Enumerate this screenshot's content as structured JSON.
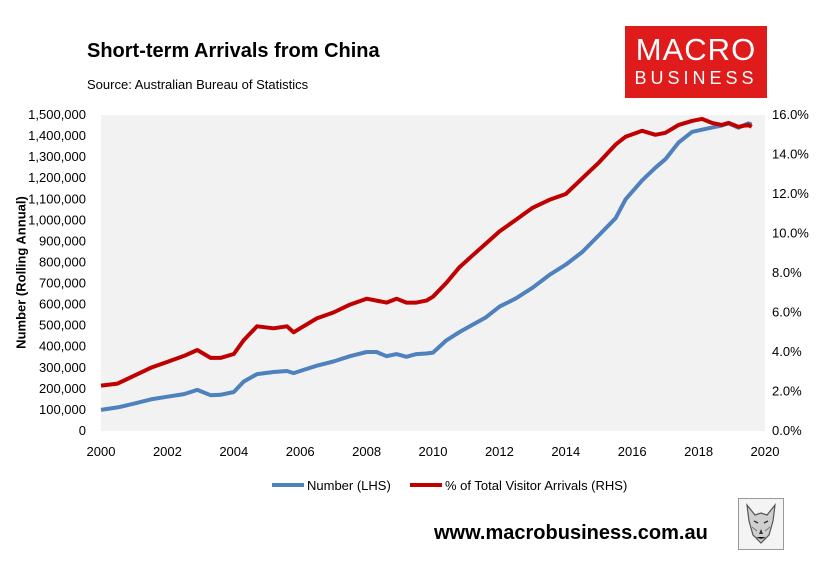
{
  "header": {
    "title": "Short-term Arrivals from China",
    "source": "Source: Australian Bureau of Statistics"
  },
  "logo": {
    "line1": "MACRO",
    "line2": "BUSINESS",
    "color": "#e01b1b"
  },
  "footer": {
    "url": "www.macrobusiness.com.au",
    "mascot_icon": "wolf-icon"
  },
  "chart_data": {
    "type": "line",
    "title": "Short-term Arrivals from China",
    "ylabel": "Number (Rolling Annual)",
    "y_ticks": [
      "0",
      "100,000",
      "200,000",
      "300,000",
      "400,000",
      "500,000",
      "600,000",
      "700,000",
      "800,000",
      "900,000",
      "1,000,000",
      "1,100,000",
      "1,200,000",
      "1,300,000",
      "1,400,000",
      "1,500,000"
    ],
    "y2_ticks": [
      "0.0%",
      "2.0%",
      "4.0%",
      "6.0%",
      "8.0%",
      "10.0%",
      "12.0%",
      "14.0%",
      "16.0%"
    ],
    "x_ticks": [
      "2000",
      "2002",
      "2004",
      "2006",
      "2008",
      "2010",
      "2012",
      "2014",
      "2016",
      "2018",
      "2020"
    ],
    "xlim": [
      2000,
      2020
    ],
    "ylim": [
      0,
      1500000
    ],
    "y2lim": [
      0,
      16
    ],
    "grid": false,
    "plot_background": "#f2f2f2",
    "legend_position": "bottom",
    "series": [
      {
        "name": "Number (LHS)",
        "axis": "left",
        "color": "#4f81bd",
        "x": [
          2000,
          2000.5,
          2001,
          2001.5,
          2002,
          2002.5,
          2002.9,
          2003.3,
          2003.6,
          2004,
          2004.3,
          2004.7,
          2005.2,
          2005.6,
          2005.8,
          2006,
          2006.5,
          2007,
          2007.5,
          2008,
          2008.3,
          2008.6,
          2008.9,
          2009.2,
          2009.5,
          2009.8,
          2010,
          2010.4,
          2010.8,
          2011.2,
          2011.6,
          2012,
          2012.5,
          2013,
          2013.5,
          2014,
          2014.5,
          2015,
          2015.5,
          2015.8,
          2016.3,
          2016.7,
          2017,
          2017.4,
          2017.8,
          2018.1,
          2018.4,
          2018.7,
          2018.9,
          2019.2,
          2019.5,
          2019.6
        ],
        "values": [
          100000,
          112000,
          130000,
          150000,
          163000,
          175000,
          195000,
          170000,
          172000,
          185000,
          235000,
          270000,
          280000,
          285000,
          275000,
          285000,
          310000,
          330000,
          355000,
          375000,
          375000,
          355000,
          365000,
          352000,
          365000,
          368000,
          372000,
          430000,
          470000,
          505000,
          540000,
          590000,
          630000,
          680000,
          740000,
          790000,
          850000,
          930000,
          1010000,
          1100000,
          1190000,
          1250000,
          1290000,
          1370000,
          1420000,
          1430000,
          1440000,
          1450000,
          1460000,
          1440000,
          1460000,
          1455000
        ]
      },
      {
        "name": "% of Total Visitor Arrivals (RHS)",
        "axis": "right",
        "color": "#c00000",
        "x": [
          2000,
          2000.5,
          2001,
          2001.5,
          2002,
          2002.5,
          2002.9,
          2003.3,
          2003.6,
          2004,
          2004.3,
          2004.7,
          2005.2,
          2005.6,
          2005.8,
          2006,
          2006.5,
          2007,
          2007.5,
          2008,
          2008.3,
          2008.6,
          2008.9,
          2009.2,
          2009.5,
          2009.8,
          2010,
          2010.4,
          2010.8,
          2011.2,
          2011.6,
          2012,
          2012.5,
          2013,
          2013.5,
          2014,
          2014.5,
          2015,
          2015.5,
          2015.8,
          2016.3,
          2016.7,
          2017,
          2017.4,
          2017.8,
          2018.1,
          2018.4,
          2018.7,
          2018.9,
          2019.2,
          2019.5,
          2019.6
        ],
        "values": [
          2.3,
          2.4,
          2.8,
          3.2,
          3.5,
          3.8,
          4.1,
          3.7,
          3.7,
          3.9,
          4.6,
          5.3,
          5.2,
          5.3,
          5.0,
          5.2,
          5.7,
          6.0,
          6.4,
          6.7,
          6.6,
          6.5,
          6.7,
          6.5,
          6.5,
          6.6,
          6.8,
          7.5,
          8.3,
          8.9,
          9.5,
          10.1,
          10.7,
          11.3,
          11.7,
          12.0,
          12.8,
          13.6,
          14.5,
          14.9,
          15.2,
          15.0,
          15.1,
          15.5,
          15.7,
          15.8,
          15.6,
          15.5,
          15.6,
          15.4,
          15.5,
          15.4
        ]
      }
    ]
  }
}
